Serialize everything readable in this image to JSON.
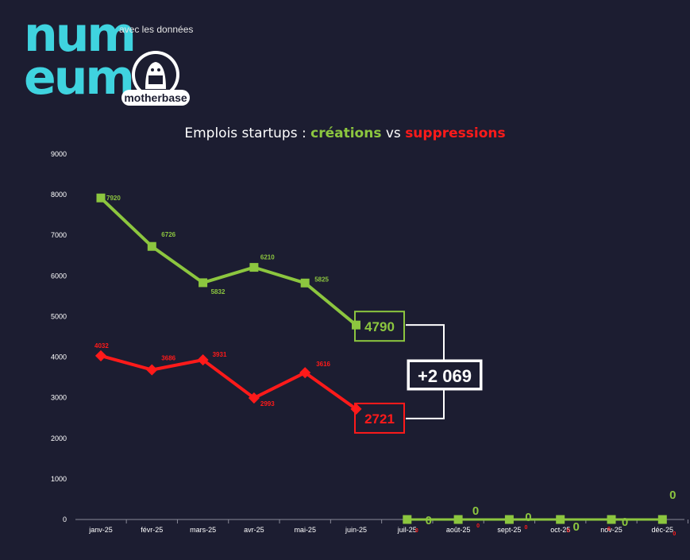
{
  "branding": {
    "numeum_lines": [
      "num",
      "eum"
    ],
    "with_data": "avec les données",
    "partner": "motherbase"
  },
  "colors": {
    "background": "#1c1d31",
    "creations": "#8cc63f",
    "suppressions": "#ff1a1a",
    "numeum": "#3fd3df"
  },
  "chart_data": {
    "type": "line",
    "title_parts": {
      "prefix": "Emplois startups : ",
      "creations": "créations",
      "middle": " vs ",
      "suppressions": "suppressions"
    },
    "categories": [
      "janv-25",
      "févr-25",
      "mars-25",
      "avr-25",
      "mai-25",
      "juin-25",
      "juil-25",
      "août-25",
      "sept-25",
      "oct-25",
      "nov-25",
      "déc-25"
    ],
    "series": [
      {
        "name": "créations",
        "values": [
          7920,
          6726,
          5832,
          6210,
          5825,
          4790,
          0,
          0,
          0,
          0,
          0,
          0
        ],
        "labels": [
          "7920",
          "6726",
          "5832",
          "6210",
          "5825",
          "4790",
          "0",
          "0",
          "0",
          "0",
          "0",
          "0"
        ]
      },
      {
        "name": "suppressions",
        "values": [
          4032,
          3686,
          3931,
          2993,
          3616,
          2721,
          0,
          0,
          0,
          0,
          0,
          0
        ],
        "labels": [
          "4032",
          "3686",
          "3931",
          "2993",
          "3616",
          "2721",
          "0",
          "0",
          "0",
          "0",
          "0",
          "0"
        ]
      }
    ],
    "ylim": [
      0,
      9000
    ],
    "yticks": [
      "9000",
      "8000",
      "7000",
      "6000",
      "5000",
      "4000",
      "3000",
      "2000",
      "1000",
      "0"
    ],
    "annotation": {
      "difference": "+2 069"
    },
    "grid": false,
    "legend": "none"
  }
}
